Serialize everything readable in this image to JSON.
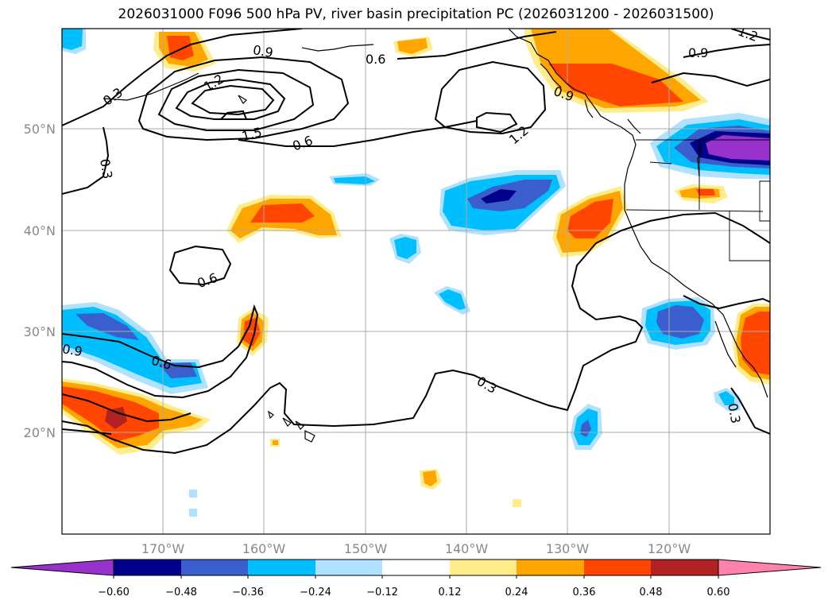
{
  "title": "2026031000 F096 500 hPa PV, river basin precipitation PC (2026031200 - 2026031500)",
  "lat_labels": [
    "50°N",
    "40°N",
    "30°N",
    "20°N"
  ],
  "lon_labels": [
    "170°W",
    "160°W",
    "150°W",
    "140°W",
    "130°W",
    "120°W"
  ],
  "contour_labels": [
    "0.3",
    "0.3",
    "0.3",
    "0.3",
    "0.6",
    "0.6",
    "0.6",
    "0.6",
    "0.9",
    "0.9",
    "0.9",
    "0.9",
    "1.2",
    "1.2",
    "1.2",
    "1.5"
  ],
  "colorbar": {
    "tick_labels": [
      "−0.60",
      "−0.48",
      "−0.36",
      "−0.24",
      "−0.12",
      "0.12",
      "0.24",
      "0.36",
      "0.48",
      "0.60"
    ],
    "colors": [
      "#9932cc",
      "#00008b",
      "#3a5fcd",
      "#00bfff",
      "#b0e2ff",
      "#ffffff",
      "#ffec8b",
      "#ffa500",
      "#ff4500",
      "#b22222",
      "#ff82ab"
    ]
  }
}
